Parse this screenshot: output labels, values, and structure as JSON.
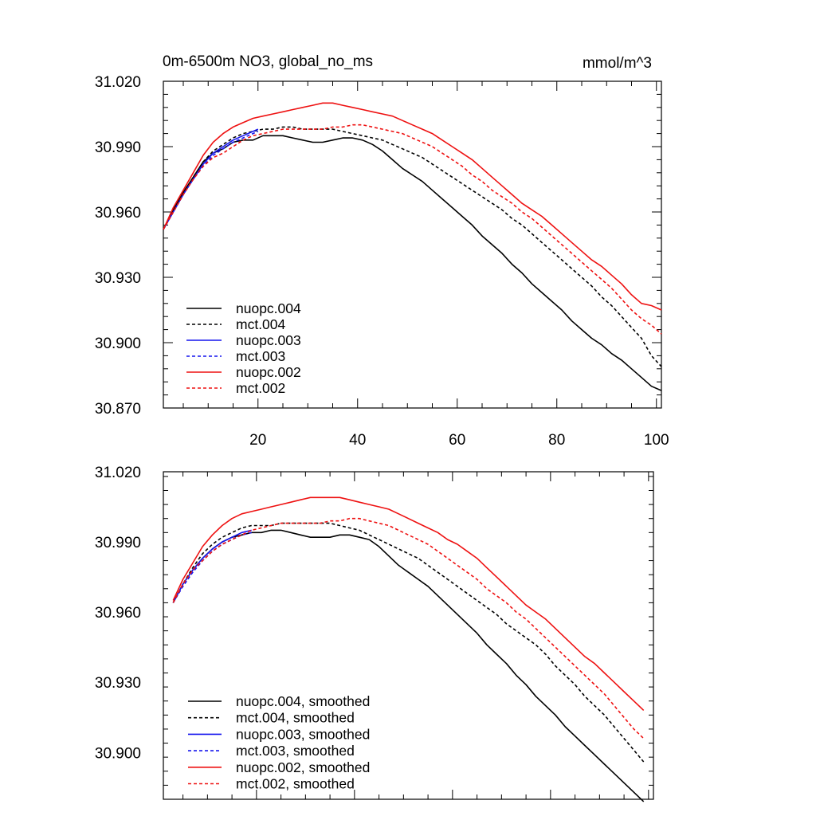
{
  "header": {
    "title": "0m-6500m NO3, global_no_ms",
    "units": "mmol/m^3"
  },
  "chart_data": [
    {
      "type": "line",
      "title": "0m-6500m NO3, global_no_ms",
      "units": "mmol/m^3",
      "xlabel": "",
      "ylabel": "",
      "xlim": [
        1,
        101
      ],
      "ylim": [
        30.87,
        31.02
      ],
      "x_ticks": [
        20,
        40,
        60,
        80,
        100
      ],
      "x_tick_labels": [
        "20",
        "40",
        "60",
        "80",
        "100"
      ],
      "y_ticks": [
        30.87,
        30.9,
        30.93,
        30.96,
        30.99,
        31.02
      ],
      "y_tick_labels": [
        "30.870",
        "30.900",
        "30.930",
        "30.960",
        "30.990",
        "31.020"
      ],
      "legend_position": "bottom-left",
      "series": [
        {
          "name": "nuopc.004",
          "color": "#000000",
          "dash": "solid",
          "x": [
            1,
            3,
            5,
            7,
            9,
            11,
            13,
            15,
            17,
            19,
            21,
            23,
            25,
            27,
            29,
            31,
            33,
            35,
            37,
            39,
            41,
            43,
            45,
            47,
            49,
            51,
            53,
            55,
            57,
            59,
            61,
            63,
            65,
            67,
            69,
            71,
            73,
            75,
            77,
            79,
            81,
            83,
            85,
            87,
            89,
            91,
            93,
            95,
            97,
            99,
            101
          ],
          "values": [
            30.952,
            30.961,
            30.969,
            30.976,
            30.983,
            30.987,
            30.989,
            30.992,
            30.993,
            30.993,
            30.995,
            30.995,
            30.995,
            30.994,
            30.993,
            30.992,
            30.992,
            30.993,
            30.994,
            30.994,
            30.993,
            30.991,
            30.988,
            30.984,
            30.98,
            30.977,
            30.974,
            30.97,
            30.966,
            30.962,
            30.958,
            30.954,
            30.949,
            30.945,
            30.941,
            30.936,
            30.932,
            30.927,
            30.923,
            30.919,
            30.915,
            30.91,
            30.906,
            30.902,
            30.899,
            30.895,
            30.892,
            30.888,
            30.884,
            30.88,
            30.878
          ]
        },
        {
          "name": "mct.004",
          "color": "#000000",
          "dash": "dashed",
          "x": [
            1,
            3,
            5,
            7,
            9,
            11,
            13,
            15,
            17,
            19,
            21,
            23,
            25,
            27,
            29,
            31,
            33,
            35,
            37,
            39,
            41,
            43,
            45,
            47,
            49,
            51,
            53,
            55,
            57,
            59,
            61,
            63,
            65,
            67,
            69,
            71,
            73,
            75,
            77,
            79,
            81,
            83,
            85,
            87,
            89,
            91,
            93,
            95,
            97,
            99,
            101
          ],
          "values": [
            30.952,
            30.96,
            30.968,
            30.976,
            30.983,
            30.988,
            30.991,
            30.994,
            30.996,
            30.997,
            30.998,
            30.998,
            30.999,
            30.999,
            30.998,
            30.998,
            30.998,
            30.998,
            30.997,
            30.996,
            30.995,
            30.994,
            30.993,
            30.991,
            30.989,
            30.987,
            30.985,
            30.982,
            30.979,
            30.976,
            30.973,
            30.97,
            30.967,
            30.964,
            30.961,
            30.957,
            30.954,
            30.95,
            30.946,
            30.942,
            30.938,
            30.934,
            30.93,
            30.926,
            30.921,
            30.917,
            30.912,
            30.907,
            30.902,
            30.894,
            30.889
          ]
        },
        {
          "name": "nuopc.003",
          "color": "#1515ee",
          "dash": "solid",
          "x": [
            1,
            3,
            5,
            7,
            9,
            11,
            13,
            15,
            17,
            19,
            20
          ],
          "values": [
            30.952,
            30.96,
            30.968,
            30.975,
            30.982,
            30.987,
            30.99,
            30.993,
            30.995,
            30.997,
            30.998
          ]
        },
        {
          "name": "mct.003",
          "color": "#1515ee",
          "dash": "dashed",
          "x": [
            1,
            3,
            5,
            7,
            9,
            11,
            13,
            15,
            17,
            19,
            20
          ],
          "values": [
            30.952,
            30.96,
            30.968,
            30.975,
            30.981,
            30.986,
            30.989,
            30.992,
            30.994,
            30.996,
            30.997
          ]
        },
        {
          "name": "nuopc.002",
          "color": "#ee1111",
          "dash": "solid",
          "x": [
            1,
            3,
            5,
            7,
            9,
            11,
            13,
            15,
            17,
            19,
            21,
            23,
            25,
            27,
            29,
            31,
            33,
            35,
            37,
            39,
            41,
            43,
            45,
            47,
            49,
            51,
            53,
            55,
            57,
            59,
            61,
            63,
            65,
            67,
            69,
            71,
            73,
            75,
            77,
            79,
            81,
            83,
            85,
            87,
            89,
            91,
            93,
            95,
            97,
            99,
            101
          ],
          "values": [
            30.952,
            30.962,
            30.97,
            30.978,
            30.986,
            30.992,
            30.996,
            30.999,
            31.001,
            31.003,
            31.004,
            31.005,
            31.006,
            31.007,
            31.008,
            31.009,
            31.01,
            31.01,
            31.009,
            31.008,
            31.007,
            31.006,
            31.005,
            31.004,
            31.002,
            31.0,
            30.998,
            30.996,
            30.993,
            30.99,
            30.987,
            30.984,
            30.98,
            30.976,
            30.972,
            30.968,
            30.964,
            30.961,
            30.958,
            30.954,
            30.95,
            30.946,
            30.942,
            30.938,
            30.935,
            30.931,
            30.927,
            30.922,
            30.918,
            30.917,
            30.915
          ]
        },
        {
          "name": "mct.002",
          "color": "#ee1111",
          "dash": "dashed",
          "x": [
            1,
            3,
            5,
            7,
            9,
            11,
            13,
            15,
            17,
            19,
            21,
            23,
            25,
            27,
            29,
            31,
            33,
            35,
            37,
            39,
            41,
            43,
            45,
            47,
            49,
            51,
            53,
            55,
            57,
            59,
            61,
            63,
            65,
            67,
            69,
            71,
            73,
            75,
            77,
            79,
            81,
            83,
            85,
            87,
            89,
            91,
            93,
            95,
            97,
            99,
            101
          ],
          "values": [
            30.952,
            30.96,
            30.968,
            30.975,
            30.981,
            30.985,
            30.987,
            30.99,
            30.993,
            30.995,
            30.996,
            30.997,
            30.998,
            30.998,
            30.998,
            30.998,
            30.998,
            30.999,
            30.999,
            31.0,
            31.0,
            30.999,
            30.998,
            30.997,
            30.996,
            30.994,
            30.992,
            30.99,
            30.987,
            30.984,
            30.981,
            30.977,
            30.974,
            30.97,
            30.967,
            30.964,
            30.96,
            30.957,
            30.953,
            30.949,
            30.945,
            30.941,
            30.937,
            30.933,
            30.929,
            30.925,
            30.92,
            30.915,
            30.911,
            30.908,
            30.904
          ]
        }
      ]
    },
    {
      "type": "line",
      "title": "",
      "xlabel": "",
      "ylabel": "",
      "xlim": [
        1,
        101
      ],
      "ylim": [
        30.88,
        31.02
      ],
      "x_ticks": [
        20,
        40,
        60,
        80,
        100
      ],
      "x_tick_labels": [],
      "y_ticks": [
        30.9,
        30.93,
        30.96,
        30.99,
        31.02
      ],
      "y_tick_labels": [
        "30.900",
        "30.930",
        "30.960",
        "30.990",
        "31.020"
      ],
      "legend_position": "bottom-left",
      "series": [
        {
          "name": "nuopc.004, smoothed",
          "color": "#000000",
          "dash": "solid",
          "x": [
            3,
            5,
            7,
            9,
            11,
            13,
            15,
            17,
            19,
            21,
            23,
            25,
            27,
            29,
            31,
            33,
            35,
            37,
            39,
            41,
            43,
            45,
            47,
            49,
            51,
            53,
            55,
            57,
            59,
            61,
            63,
            65,
            67,
            69,
            71,
            73,
            75,
            77,
            79,
            81,
            83,
            85,
            87,
            89,
            91,
            93,
            95,
            97,
            99
          ],
          "values": [
            30.964,
            30.972,
            30.978,
            30.983,
            30.987,
            30.99,
            30.992,
            30.993,
            30.994,
            30.994,
            30.995,
            30.995,
            30.994,
            30.993,
            30.992,
            30.992,
            30.992,
            30.993,
            30.993,
            30.992,
            30.991,
            30.988,
            30.984,
            30.98,
            30.977,
            30.974,
            30.971,
            30.967,
            30.963,
            30.959,
            30.955,
            30.951,
            30.946,
            30.942,
            30.938,
            30.933,
            30.929,
            30.924,
            30.92,
            30.916,
            30.911,
            30.907,
            30.903,
            30.899,
            30.895,
            30.891,
            30.887,
            30.883,
            30.879
          ]
        },
        {
          "name": "mct.004, smoothed",
          "color": "#000000",
          "dash": "dashed",
          "x": [
            3,
            5,
            7,
            9,
            11,
            13,
            15,
            17,
            19,
            21,
            23,
            25,
            27,
            29,
            31,
            33,
            35,
            37,
            39,
            41,
            43,
            45,
            47,
            49,
            51,
            53,
            55,
            57,
            59,
            61,
            63,
            65,
            67,
            69,
            71,
            73,
            75,
            77,
            79,
            81,
            83,
            85,
            87,
            89,
            91,
            93,
            95,
            97,
            99
          ],
          "values": [
            30.964,
            30.972,
            30.979,
            30.985,
            30.989,
            30.992,
            30.994,
            30.996,
            30.997,
            30.997,
            30.997,
            30.998,
            30.998,
            30.998,
            30.998,
            30.998,
            30.998,
            30.997,
            30.996,
            30.995,
            30.993,
            30.991,
            30.989,
            30.987,
            30.985,
            30.983,
            30.98,
            30.977,
            30.974,
            30.971,
            30.968,
            30.965,
            30.962,
            30.959,
            30.955,
            30.952,
            30.949,
            30.946,
            30.942,
            30.937,
            30.933,
            30.929,
            30.924,
            30.92,
            30.916,
            30.911,
            30.906,
            30.901,
            30.896
          ]
        },
        {
          "name": "nuopc.003, smoothed",
          "color": "#1515ee",
          "dash": "solid",
          "x": [
            3,
            5,
            7,
            9,
            11,
            13,
            15,
            17,
            19
          ],
          "values": [
            30.964,
            30.972,
            30.978,
            30.983,
            30.987,
            30.99,
            30.992,
            30.994,
            30.995
          ]
        },
        {
          "name": "mct.003, smoothed",
          "color": "#1515ee",
          "dash": "dashed",
          "x": [
            3,
            5,
            7,
            9,
            11,
            13,
            15,
            17,
            19
          ],
          "values": [
            30.964,
            30.971,
            30.977,
            30.982,
            30.986,
            30.989,
            30.991,
            30.993,
            30.994
          ]
        },
        {
          "name": "nuopc.002, smoothed",
          "color": "#ee1111",
          "dash": "solid",
          "x": [
            3,
            5,
            7,
            9,
            11,
            13,
            15,
            17,
            19,
            21,
            23,
            25,
            27,
            29,
            31,
            33,
            35,
            37,
            39,
            41,
            43,
            45,
            47,
            49,
            51,
            53,
            55,
            57,
            59,
            61,
            63,
            65,
            67,
            69,
            71,
            73,
            75,
            77,
            79,
            81,
            83,
            85,
            87,
            89,
            91,
            93,
            95,
            97,
            99
          ],
          "values": [
            30.965,
            30.974,
            30.981,
            30.988,
            30.993,
            30.997,
            31.0,
            31.002,
            31.003,
            31.004,
            31.005,
            31.006,
            31.007,
            31.008,
            31.009,
            31.009,
            31.009,
            31.009,
            31.008,
            31.007,
            31.006,
            31.005,
            31.004,
            31.002,
            31.0,
            30.998,
            30.996,
            30.994,
            30.991,
            30.989,
            30.986,
            30.983,
            30.979,
            30.975,
            30.971,
            30.967,
            30.963,
            30.96,
            30.957,
            30.953,
            30.949,
            30.945,
            30.941,
            30.938,
            30.934,
            30.93,
            30.926,
            30.922,
            30.918
          ]
        },
        {
          "name": "mct.002, smoothed",
          "color": "#ee1111",
          "dash": "dashed",
          "x": [
            3,
            5,
            7,
            9,
            11,
            13,
            15,
            17,
            19,
            21,
            23,
            25,
            27,
            29,
            31,
            33,
            35,
            37,
            39,
            41,
            43,
            45,
            47,
            49,
            51,
            53,
            55,
            57,
            59,
            61,
            63,
            65,
            67,
            69,
            71,
            73,
            75,
            77,
            79,
            81,
            83,
            85,
            87,
            89,
            91,
            93,
            95,
            97,
            99
          ],
          "values": [
            30.964,
            30.972,
            30.978,
            30.982,
            30.986,
            30.989,
            30.991,
            30.993,
            30.995,
            30.996,
            30.997,
            30.998,
            30.998,
            30.998,
            30.998,
            30.998,
            30.999,
            30.999,
            31.0,
            31.0,
            30.999,
            30.998,
            30.997,
            30.995,
            30.993,
            30.991,
            30.989,
            30.986,
            30.983,
            30.98,
            30.977,
            30.974,
            30.97,
            30.967,
            30.964,
            30.96,
            30.957,
            30.953,
            30.949,
            30.945,
            30.941,
            30.937,
            30.933,
            30.929,
            30.925,
            30.92,
            30.915,
            30.91,
            30.906
          ]
        }
      ]
    }
  ]
}
